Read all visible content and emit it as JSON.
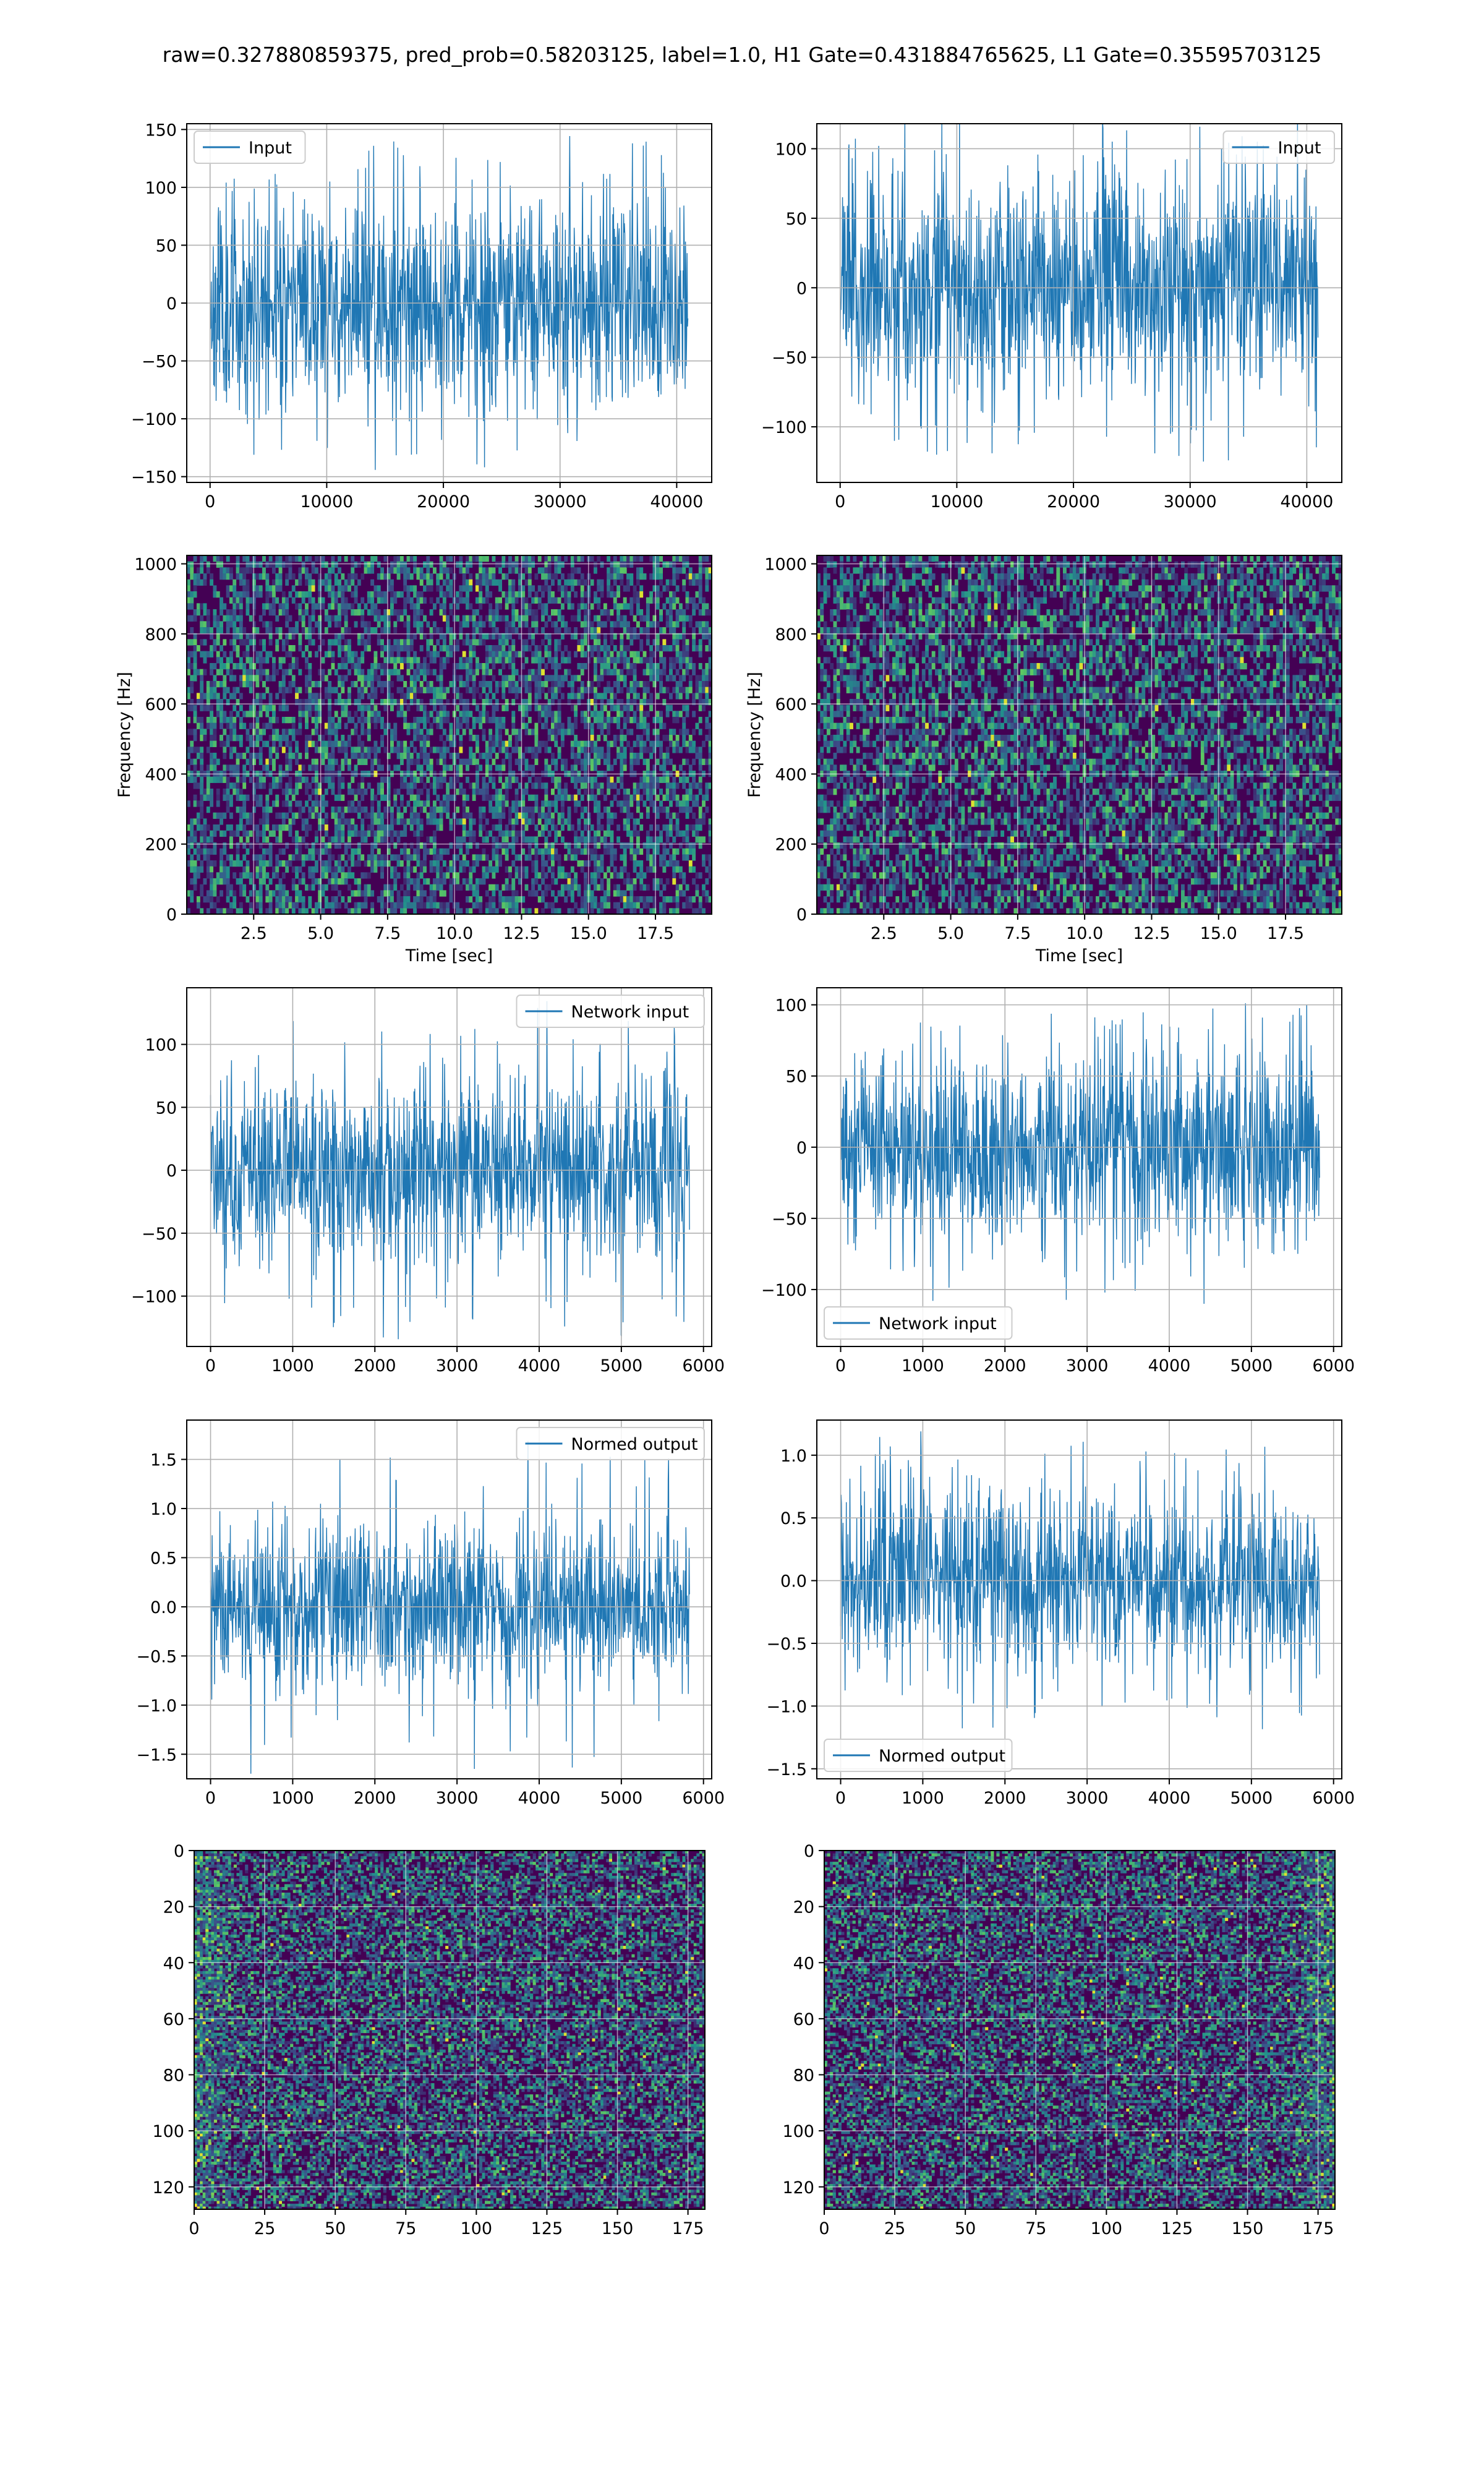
{
  "figure_title": "raw=0.327880859375, pred_prob=0.58203125, label=1.0, H1 Gate=0.431884765625, L1 Gate=0.35595703125",
  "colors": {
    "line": "#1f77b4",
    "grid": "#b0b0b0",
    "axes": "#000000",
    "viridis_low": "#440154",
    "viridis_mid": "#21918c",
    "viridis_high": "#fde725"
  },
  "chart_data": [
    {
      "id": "h1-input",
      "type": "line",
      "legend": "Input",
      "legend_loc": "upper left",
      "xlim": [
        -2000,
        43000
      ],
      "ylim": [
        -155,
        155
      ],
      "xticks": [
        0,
        10000,
        20000,
        30000,
        40000
      ],
      "xticklabels": [
        "0",
        "10000",
        "20000",
        "30000",
        "40000"
      ],
      "yticks": [
        -150,
        -100,
        -50,
        0,
        50,
        100,
        150
      ],
      "yticklabels": [
        "−150",
        "−100",
        "−50",
        "0",
        "50",
        "100",
        "150"
      ],
      "xlabel": "",
      "ylabel": "",
      "grid": true,
      "series": [
        {
          "x_range": [
            0,
            40960
          ],
          "envelope": 50,
          "peak": 145,
          "seed": 11
        }
      ]
    },
    {
      "id": "l1-input",
      "type": "line",
      "legend": "Input",
      "legend_loc": "upper right",
      "xlim": [
        -2000,
        43000
      ],
      "ylim": [
        -140,
        118
      ],
      "xticks": [
        0,
        10000,
        20000,
        30000,
        40000
      ],
      "xticklabels": [
        "0",
        "10000",
        "20000",
        "30000",
        "40000"
      ],
      "yticks": [
        -100,
        -50,
        0,
        50,
        100
      ],
      "yticklabels": [
        "−100",
        "−50",
        "0",
        "50",
        "100"
      ],
      "xlabel": "",
      "ylabel": "",
      "grid": true,
      "series": [
        {
          "x_range": [
            0,
            40960
          ],
          "envelope": 45,
          "peak": 125,
          "seed": 23
        }
      ]
    },
    {
      "id": "h1-spectrogram",
      "type": "heatmap",
      "xlim": [
        0,
        19.6
      ],
      "ylim": [
        0,
        1024
      ],
      "xticks": [
        2.5,
        5.0,
        7.5,
        10.0,
        12.5,
        15.0,
        17.5
      ],
      "xticklabels": [
        "2.5",
        "5.0",
        "7.5",
        "10.0",
        "12.5",
        "15.0",
        "17.5"
      ],
      "yticks": [
        0,
        200,
        400,
        600,
        800,
        1000
      ],
      "yticklabels": [
        "0",
        "200",
        "400",
        "600",
        "800",
        "1000"
      ],
      "xlabel": "Time [sec]",
      "ylabel": "Frequency [Hz]",
      "grid": true,
      "colormap": "viridis",
      "grid_cells": [
        160,
        60
      ],
      "seed": 31
    },
    {
      "id": "l1-spectrogram",
      "type": "heatmap",
      "xlim": [
        0,
        19.6
      ],
      "ylim": [
        0,
        1024
      ],
      "xticks": [
        2.5,
        5.0,
        7.5,
        10.0,
        12.5,
        15.0,
        17.5
      ],
      "xticklabels": [
        "2.5",
        "5.0",
        "7.5",
        "10.0",
        "12.5",
        "15.0",
        "17.5"
      ],
      "yticks": [
        0,
        200,
        400,
        600,
        800,
        1000
      ],
      "yticklabels": [
        "0",
        "200",
        "400",
        "600",
        "800",
        "1000"
      ],
      "xlabel": "Time [sec]",
      "ylabel": "Frequency [Hz]",
      "grid": true,
      "colormap": "viridis",
      "grid_cells": [
        160,
        60
      ],
      "seed": 37
    },
    {
      "id": "h1-network-input",
      "type": "line",
      "legend": "Network input",
      "legend_loc": "upper right",
      "xlim": [
        -290,
        6100
      ],
      "ylim": [
        -140,
        145
      ],
      "xticks": [
        0,
        1000,
        2000,
        3000,
        4000,
        5000,
        6000
      ],
      "xticklabels": [
        "0",
        "1000",
        "2000",
        "3000",
        "4000",
        "5000",
        "6000"
      ],
      "yticks": [
        -100,
        -50,
        0,
        50,
        100
      ],
      "yticklabels": [
        "−100",
        "−50",
        "0",
        "50",
        "100"
      ],
      "xlabel": "",
      "ylabel": "",
      "grid": true,
      "series": [
        {
          "x_range": [
            0,
            5830
          ],
          "envelope": 40,
          "peak": 135,
          "seed": 41
        }
      ]
    },
    {
      "id": "l1-network-input",
      "type": "line",
      "legend": "Network input",
      "legend_loc": "lower left",
      "xlim": [
        -290,
        6100
      ],
      "ylim": [
        -140,
        112
      ],
      "xticks": [
        0,
        1000,
        2000,
        3000,
        4000,
        5000,
        6000
      ],
      "xticklabels": [
        "0",
        "1000",
        "2000",
        "3000",
        "4000",
        "5000",
        "6000"
      ],
      "yticks": [
        -100,
        -50,
        0,
        50,
        100
      ],
      "yticklabels": [
        "−100",
        "−50",
        "0",
        "50",
        "100"
      ],
      "xlabel": "",
      "ylabel": "",
      "grid": true,
      "series": [
        {
          "x_range": [
            0,
            5830
          ],
          "envelope": 38,
          "peak": 110,
          "seed": 53
        }
      ]
    },
    {
      "id": "h1-normed-output",
      "type": "line",
      "legend": "Normed output",
      "legend_loc": "upper right",
      "xlim": [
        -290,
        6100
      ],
      "ylim": [
        -1.75,
        1.9
      ],
      "xticks": [
        0,
        1000,
        2000,
        3000,
        4000,
        5000,
        6000
      ],
      "xticklabels": [
        "0",
        "1000",
        "2000",
        "3000",
        "4000",
        "5000",
        "6000"
      ],
      "yticks": [
        -1.5,
        -1.0,
        -0.5,
        0.0,
        0.5,
        1.0,
        1.5
      ],
      "yticklabels": [
        "−1.5",
        "−1.0",
        "−0.5",
        "0.0",
        "0.5",
        "1.0",
        "1.5"
      ],
      "xlabel": "",
      "ylabel": "",
      "grid": true,
      "series": [
        {
          "x_range": [
            0,
            5830
          ],
          "envelope": 0.48,
          "peak": 1.7,
          "seed": 61
        }
      ]
    },
    {
      "id": "l1-normed-output",
      "type": "line",
      "legend": "Normed output",
      "legend_loc": "lower left",
      "xlim": [
        -290,
        6100
      ],
      "ylim": [
        -1.58,
        1.28
      ],
      "xticks": [
        0,
        1000,
        2000,
        3000,
        4000,
        5000,
        6000
      ],
      "xticklabels": [
        "0",
        "1000",
        "2000",
        "3000",
        "4000",
        "5000",
        "6000"
      ],
      "yticks": [
        -1.5,
        -1.0,
        -0.5,
        0.0,
        0.5,
        1.0
      ],
      "yticklabels": [
        "−1.5",
        "−1.0",
        "−0.5",
        "0.0",
        "0.5",
        "1.0"
      ],
      "xlabel": "",
      "ylabel": "",
      "grid": true,
      "series": [
        {
          "x_range": [
            0,
            5830
          ],
          "envelope": 0.4,
          "peak": 1.2,
          "seed": 67
        }
      ]
    },
    {
      "id": "h1-feature-map",
      "type": "heatmap",
      "xlim": [
        0,
        181
      ],
      "ylim": [
        128,
        0
      ],
      "xticks": [
        0,
        25,
        50,
        75,
        100,
        125,
        150,
        175
      ],
      "xticklabels": [
        "0",
        "25",
        "50",
        "75",
        "100",
        "125",
        "150",
        "175"
      ],
      "yticks": [
        0,
        20,
        40,
        60,
        80,
        100,
        120
      ],
      "yticklabels": [
        "0",
        "20",
        "40",
        "60",
        "80",
        "100",
        "120"
      ],
      "xlabel": "",
      "ylabel": "",
      "grid": true,
      "colormap": "viridis",
      "grid_cells": [
        181,
        128
      ],
      "seed": 71,
      "bright_edges": "left"
    },
    {
      "id": "l1-feature-map",
      "type": "heatmap",
      "xlim": [
        0,
        181
      ],
      "ylim": [
        128,
        0
      ],
      "xticks": [
        0,
        25,
        50,
        75,
        100,
        125,
        150,
        175
      ],
      "xticklabels": [
        "0",
        "25",
        "50",
        "75",
        "100",
        "125",
        "150",
        "175"
      ],
      "yticks": [
        0,
        20,
        40,
        60,
        80,
        100,
        120
      ],
      "yticklabels": [
        "0",
        "20",
        "40",
        "60",
        "80",
        "100",
        "120"
      ],
      "xlabel": "",
      "ylabel": "",
      "grid": true,
      "colormap": "viridis",
      "grid_cells": [
        181,
        128
      ],
      "seed": 79,
      "bright_edges": "right"
    }
  ]
}
